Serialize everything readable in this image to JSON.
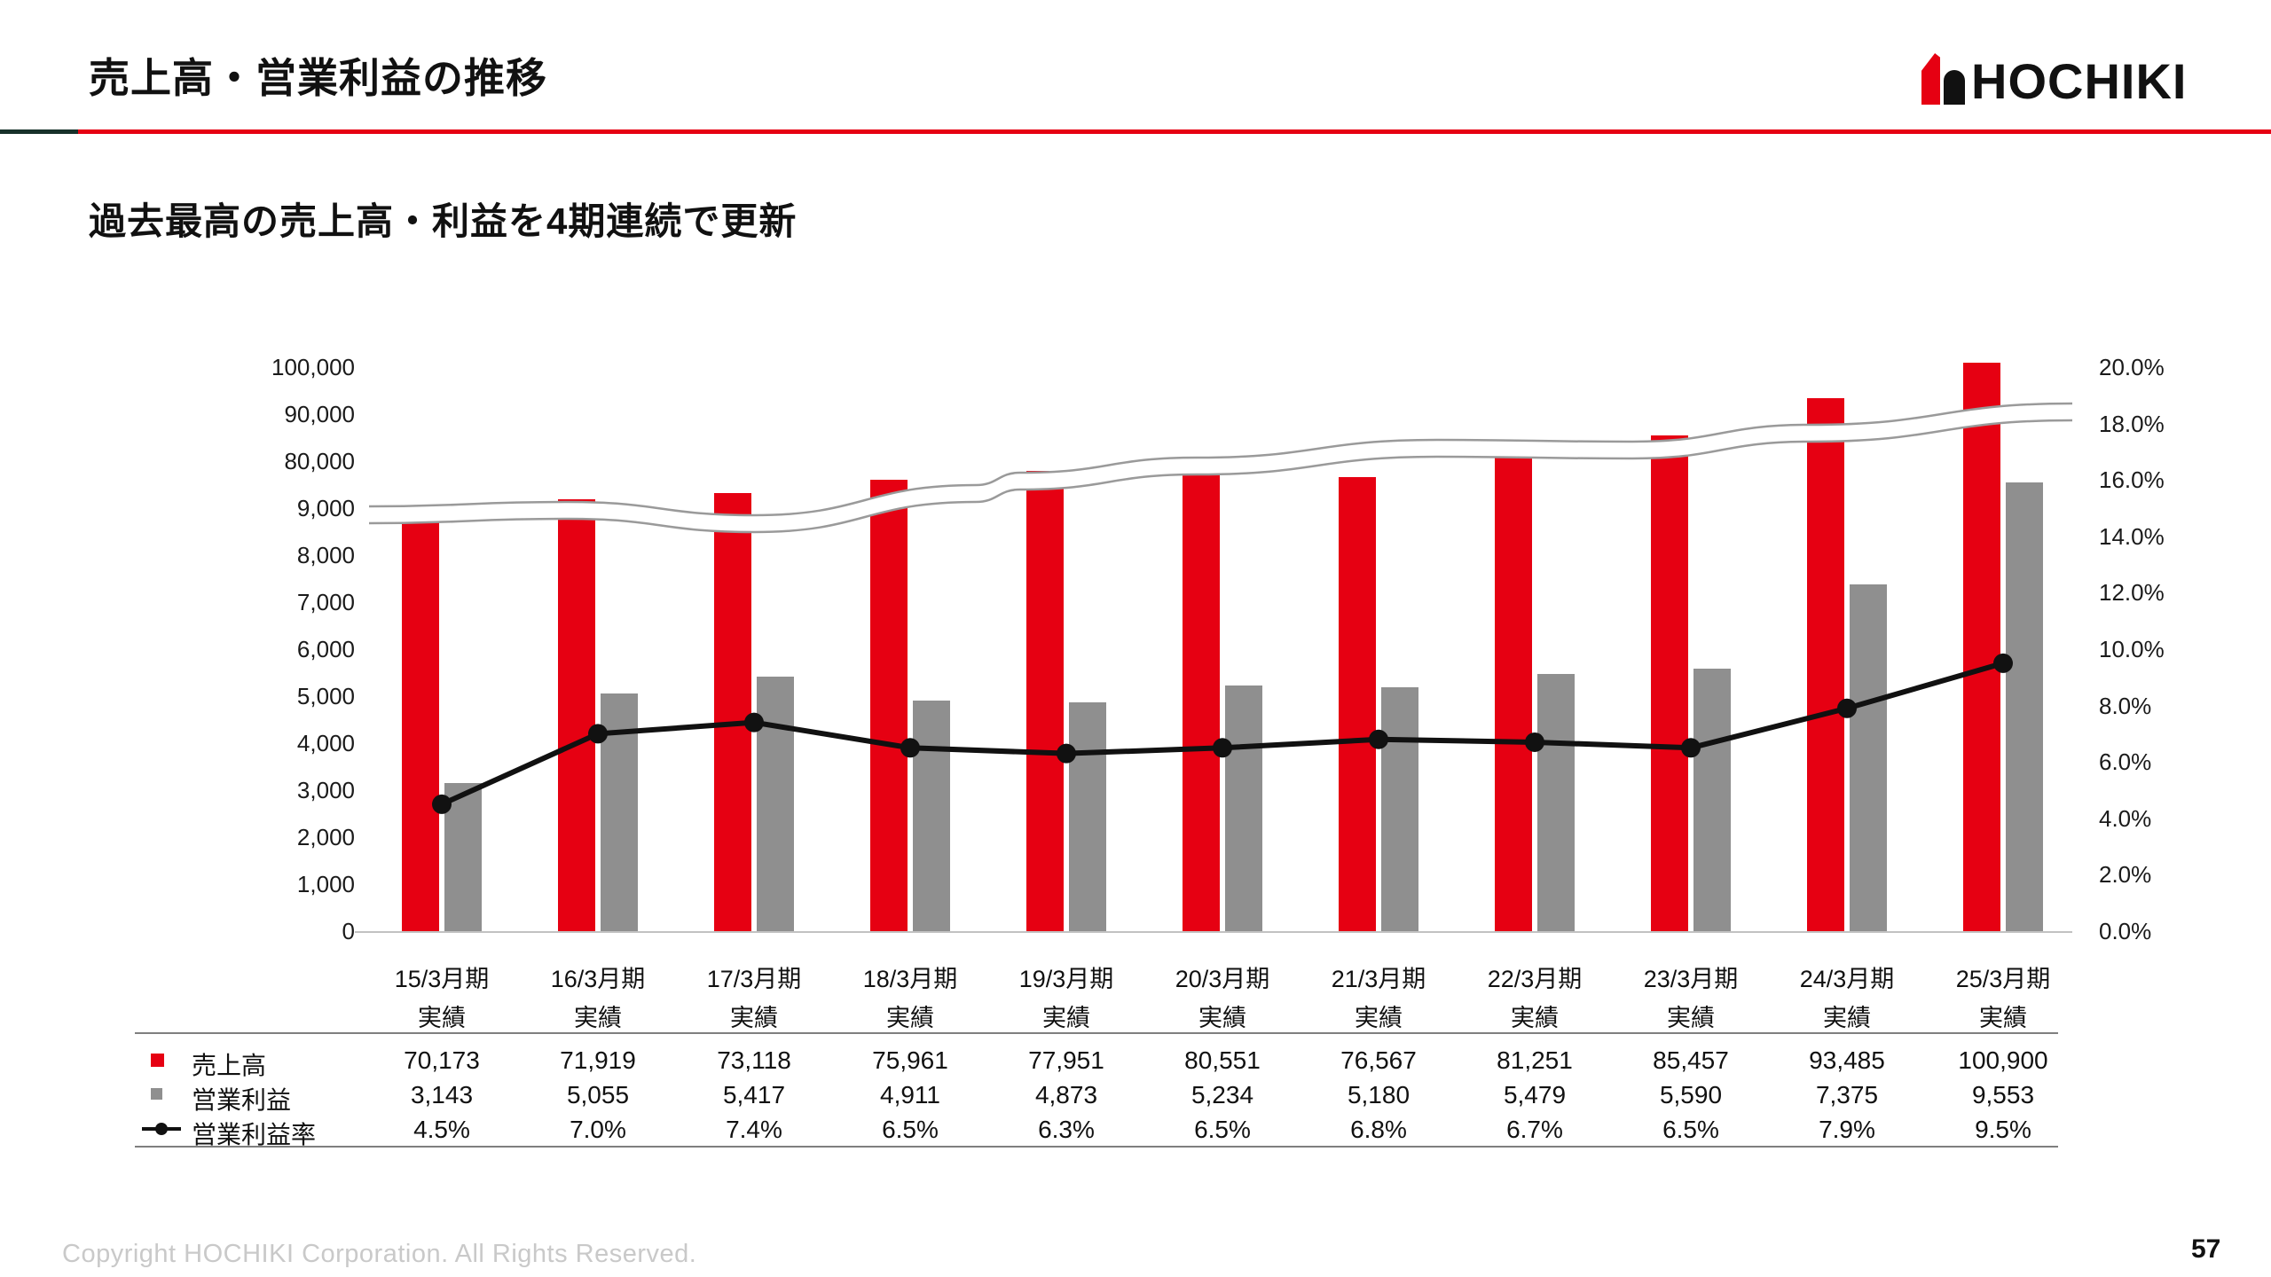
{
  "header": {
    "title": "売上高・営業利益の推移",
    "subtitle": "過去最高の売上高・利益を4期連続で更新",
    "logo_text": "HOCHIKI"
  },
  "footer": {
    "copyright": "Copyright HOCHIKI Corporation. All Rights Reserved.",
    "page_number": "57"
  },
  "colors": {
    "brand_red": "#e60012",
    "bar_gray": "#8f8f8f",
    "line_black": "#111111",
    "wave_gray": "#9a9a9a"
  },
  "chart_data": {
    "type": "bar",
    "subtype": "grouped bars + line, broken value axis",
    "title": "売上高・営業利益の推移",
    "categories": [
      "15/3月期",
      "16/3月期",
      "17/3月期",
      "18/3月期",
      "19/3月期",
      "20/3月期",
      "21/3月期",
      "22/3月期",
      "23/3月期",
      "24/3月期",
      "25/3月期"
    ],
    "category_sublabel": "実績",
    "series": [
      {
        "name": "売上高",
        "type": "bar",
        "color": "#e60012",
        "marker": "square",
        "values": [
          70173,
          71919,
          73118,
          75961,
          77951,
          80551,
          76567,
          81251,
          85457,
          93485,
          100900
        ],
        "values_fmt": [
          "70,173",
          "71,919",
          "73,118",
          "75,961",
          "77,951",
          "80,551",
          "76,567",
          "81,251",
          "85,457",
          "93,485",
          "100,900"
        ]
      },
      {
        "name": "営業利益",
        "type": "bar",
        "color": "#8f8f8f",
        "marker": "square",
        "values": [
          3143,
          5055,
          5417,
          4911,
          4873,
          5234,
          5180,
          5479,
          5590,
          7375,
          9553
        ],
        "values_fmt": [
          "3,143",
          "5,055",
          "5,417",
          "4,911",
          "4,873",
          "5,234",
          "5,180",
          "5,479",
          "5,590",
          "7,375",
          "9,553"
        ]
      },
      {
        "name": "営業利益率",
        "type": "line",
        "color": "#111111",
        "marker": "line-dot",
        "values": [
          4.5,
          7.0,
          7.4,
          6.5,
          6.3,
          6.5,
          6.8,
          6.7,
          6.5,
          7.9,
          9.5
        ],
        "values_fmt": [
          "4.5%",
          "7.0%",
          "7.4%",
          "6.5%",
          "6.3%",
          "6.5%",
          "6.8%",
          "6.7%",
          "6.5%",
          "7.9%",
          "9.5%"
        ]
      }
    ],
    "left_axis": {
      "broken": true,
      "labels": [
        "100,000",
        "90,000",
        "80,000",
        "9,000",
        "8,000",
        "7,000",
        "6,000",
        "5,000",
        "4,000",
        "3,000",
        "2,000",
        "1,000",
        "0"
      ]
    },
    "right_axis": {
      "labels": [
        "20.0%",
        "18.0%",
        "16.0%",
        "14.0%",
        "12.0%",
        "10.0%",
        "8.0%",
        "6.0%",
        "4.0%",
        "2.0%",
        "0.0%"
      ],
      "range": [
        0,
        20
      ]
    },
    "grid": false,
    "legend_position": "table rows at bottom-left"
  }
}
